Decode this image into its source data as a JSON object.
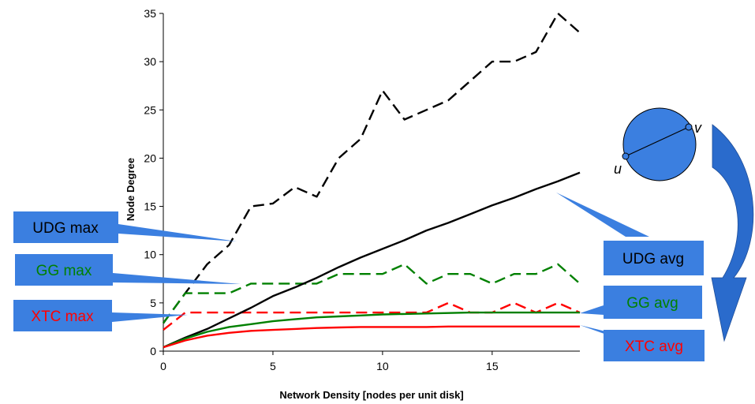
{
  "chart_data": {
    "type": "line",
    "xlabel": "Network Density [nodes per unit disk]",
    "ylabel": "Node Degree",
    "xlim": [
      0,
      19
    ],
    "ylim": [
      0,
      35
    ],
    "x_ticks": [
      0,
      5,
      10,
      15
    ],
    "y_ticks": [
      0,
      5,
      10,
      15,
      20,
      25,
      30,
      35
    ],
    "grid": false,
    "series": [
      {
        "name": "UDG max",
        "color": "#000000",
        "dash": "dashed",
        "x": [
          0,
          1,
          2,
          3,
          4,
          5,
          6,
          7,
          8,
          9,
          10,
          11,
          12,
          13,
          14,
          15,
          16,
          17,
          18,
          19
        ],
        "y": [
          2.9,
          6,
          9,
          11,
          15,
          15.3,
          17,
          16,
          20,
          22,
          27,
          24,
          25,
          26,
          28,
          30,
          30,
          31,
          35,
          33
        ]
      },
      {
        "name": "GG max",
        "color": "#008000",
        "dash": "dashed",
        "x": [
          0,
          1,
          2,
          3,
          4,
          5,
          6,
          7,
          8,
          9,
          10,
          11,
          12,
          13,
          14,
          15,
          16,
          17,
          18,
          19
        ],
        "y": [
          2.9,
          6,
          6,
          6,
          7,
          7,
          7,
          7,
          8,
          8,
          8,
          9,
          7,
          8,
          8,
          7,
          8,
          8,
          9,
          7
        ]
      },
      {
        "name": "XTC max",
        "color": "#ff0000",
        "dash": "dashed",
        "x": [
          0,
          1,
          2,
          3,
          4,
          5,
          6,
          7,
          8,
          9,
          10,
          11,
          12,
          13,
          14,
          15,
          16,
          17,
          18,
          19
        ],
        "y": [
          2.2,
          4,
          4,
          4,
          4,
          4,
          4,
          4,
          4,
          4,
          4,
          4,
          4,
          5,
          4,
          4,
          5,
          4,
          5,
          4
        ]
      },
      {
        "name": "UDG avg",
        "color": "#000000",
        "dash": "solid",
        "x": [
          0,
          1,
          2,
          3,
          4,
          5,
          6,
          7,
          8,
          9,
          10,
          11,
          12,
          13,
          14,
          15,
          16,
          17,
          18,
          19
        ],
        "y": [
          0.4,
          1.4,
          2.3,
          3.4,
          4.5,
          5.7,
          6.6,
          7.6,
          8.7,
          9.7,
          10.6,
          11.5,
          12.5,
          13.3,
          14.2,
          15.1,
          15.9,
          16.8,
          17.6,
          18.5
        ]
      },
      {
        "name": "GG avg",
        "color": "#008000",
        "dash": "solid",
        "x": [
          0,
          1,
          2,
          3,
          4,
          5,
          6,
          7,
          8,
          9,
          10,
          11,
          12,
          13,
          14,
          15,
          16,
          17,
          18,
          19
        ],
        "y": [
          0.4,
          1.3,
          2,
          2.5,
          2.8,
          3.1,
          3.3,
          3.5,
          3.6,
          3.7,
          3.8,
          3.85,
          3.9,
          3.95,
          4,
          4,
          4,
          4,
          4,
          4
        ]
      },
      {
        "name": "XTC avg",
        "color": "#ff0000",
        "dash": "solid",
        "x": [
          0,
          1,
          2,
          3,
          4,
          5,
          6,
          7,
          8,
          9,
          10,
          11,
          12,
          13,
          14,
          15,
          16,
          17,
          18,
          19
        ],
        "y": [
          0.4,
          1.1,
          1.6,
          1.9,
          2.1,
          2.2,
          2.3,
          2.4,
          2.45,
          2.5,
          2.5,
          2.5,
          2.5,
          2.55,
          2.55,
          2.55,
          2.55,
          2.55,
          2.55,
          2.55
        ]
      }
    ]
  },
  "callouts": [
    {
      "id": "udg-max",
      "label": "UDG max",
      "color": "#000000"
    },
    {
      "id": "gg-max",
      "label": "GG max",
      "color": "#008000"
    },
    {
      "id": "xtc-max",
      "label": "XTC max",
      "color": "#ff0000"
    },
    {
      "id": "udg-avg",
      "label": "UDG avg",
      "color": "#000000"
    },
    {
      "id": "gg-avg",
      "label": "GG avg",
      "color": "#008000"
    },
    {
      "id": "xtc-avg",
      "label": "XTC avg",
      "color": "#ff0000"
    }
  ],
  "callout_fill": "#3b7fe0",
  "diagram": {
    "node_u": "u",
    "node_v": "v",
    "circle_fill": "#3b7fe0",
    "arrow_fill": "#2a6bcc"
  }
}
